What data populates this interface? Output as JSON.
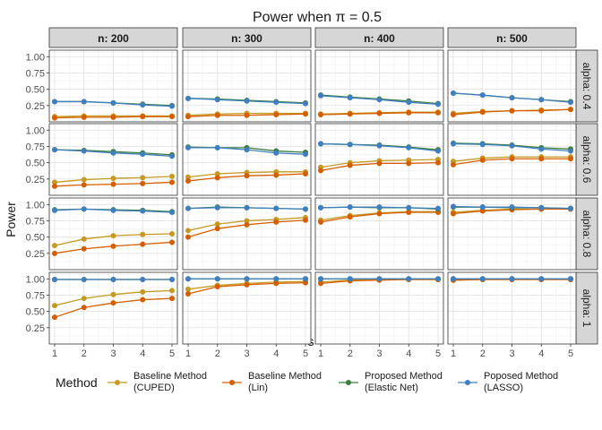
{
  "chart_data": {
    "type": "line",
    "title": "Power when π = 0.5",
    "xlabel": "s",
    "ylabel": "Power",
    "x": [
      1,
      2,
      3,
      4,
      5
    ],
    "xticks": [
      "1",
      "2",
      "3",
      "4",
      "5"
    ],
    "ylim": [
      0.0,
      1.1
    ],
    "yticks": [
      "0.25",
      "0.50",
      "0.75",
      "1.00"
    ],
    "col_facets": [
      "n: 200",
      "n: 300",
      "n: 400",
      "n: 500"
    ],
    "row_facets": [
      "alpha: 0.4",
      "alpha: 0.6",
      "alpha: 0.8",
      "alpha: 1"
    ],
    "legend_title": "Method",
    "legend_position": "bottom",
    "series": [
      {
        "name": "Baseline Method\n(CUPED)",
        "color": "#C49A22",
        "values": [
          [
            [
              0.08,
              0.09,
              0.09,
              0.09,
              0.09
            ],
            [
              0.1,
              0.12,
              0.13,
              0.13,
              0.13
            ],
            [
              0.12,
              0.13,
              0.14,
              0.15,
              0.15
            ],
            [
              0.13,
              0.16,
              0.17,
              0.18,
              0.19
            ]
          ],
          [
            [
              0.2,
              0.24,
              0.26,
              0.27,
              0.29
            ],
            [
              0.28,
              0.33,
              0.35,
              0.36,
              0.36
            ],
            [
              0.43,
              0.5,
              0.53,
              0.54,
              0.55
            ],
            [
              0.52,
              0.57,
              0.59,
              0.59,
              0.59
            ]
          ],
          [
            [
              0.37,
              0.47,
              0.52,
              0.54,
              0.55
            ],
            [
              0.6,
              0.7,
              0.75,
              0.77,
              0.8
            ],
            [
              0.76,
              0.83,
              0.87,
              0.89,
              0.89
            ],
            [
              0.88,
              0.91,
              0.93,
              0.93,
              0.94
            ]
          ],
          [
            [
              0.59,
              0.7,
              0.76,
              0.8,
              0.82
            ],
            [
              0.84,
              0.9,
              0.93,
              0.95,
              0.96
            ],
            [
              0.95,
              0.98,
              0.99,
              0.99,
              0.99
            ],
            [
              0.98,
              0.99,
              0.99,
              0.99,
              0.99
            ]
          ]
        ]
      },
      {
        "name": "Baseline Method\n(Lin)",
        "color": "#D55E00",
        "values": [
          [
            [
              0.06,
              0.07,
              0.07,
              0.08,
              0.08
            ],
            [
              0.08,
              0.1,
              0.1,
              0.11,
              0.12
            ],
            [
              0.11,
              0.12,
              0.13,
              0.14,
              0.14
            ],
            [
              0.11,
              0.15,
              0.17,
              0.17,
              0.19
            ]
          ],
          [
            [
              0.14,
              0.16,
              0.17,
              0.18,
              0.2
            ],
            [
              0.22,
              0.27,
              0.3,
              0.31,
              0.33
            ],
            [
              0.38,
              0.46,
              0.49,
              0.49,
              0.5
            ],
            [
              0.47,
              0.54,
              0.56,
              0.56,
              0.56
            ]
          ],
          [
            [
              0.25,
              0.32,
              0.36,
              0.39,
              0.42
            ],
            [
              0.5,
              0.63,
              0.69,
              0.73,
              0.76
            ],
            [
              0.73,
              0.81,
              0.86,
              0.88,
              0.88
            ],
            [
              0.86,
              0.9,
              0.92,
              0.93,
              0.93
            ]
          ],
          [
            [
              0.41,
              0.56,
              0.63,
              0.68,
              0.7
            ],
            [
              0.77,
              0.88,
              0.91,
              0.93,
              0.94
            ],
            [
              0.93,
              0.97,
              0.98,
              0.99,
              0.99
            ],
            [
              0.98,
              0.99,
              0.99,
              0.99,
              0.99
            ]
          ]
        ]
      },
      {
        "name": "Proposed Method\n(Elastic Net)",
        "color": "#3B7D3B",
        "values": [
          [
            [
              0.31,
              0.31,
              0.29,
              0.27,
              0.25
            ],
            [
              0.36,
              0.35,
              0.33,
              0.31,
              0.29
            ],
            [
              0.41,
              0.38,
              0.35,
              0.32,
              0.28
            ],
            [
              0.44,
              0.41,
              0.37,
              0.34,
              0.31
            ]
          ],
          [
            [
              0.7,
              0.69,
              0.67,
              0.65,
              0.62
            ],
            [
              0.74,
              0.73,
              0.73,
              0.68,
              0.66
            ],
            [
              0.79,
              0.78,
              0.77,
              0.74,
              0.7
            ],
            [
              0.8,
              0.79,
              0.77,
              0.73,
              0.71
            ]
          ],
          [
            [
              0.92,
              0.93,
              0.92,
              0.91,
              0.89
            ],
            [
              0.94,
              0.96,
              0.95,
              0.94,
              0.93
            ],
            [
              0.95,
              0.96,
              0.95,
              0.95,
              0.93
            ],
            [
              0.96,
              0.96,
              0.95,
              0.95,
              0.94
            ]
          ],
          [
            [
              0.99,
              0.99,
              0.99,
              0.99,
              0.99
            ],
            [
              1.0,
              1.0,
              1.0,
              1.0,
              1.0
            ],
            [
              1.0,
              1.0,
              1.0,
              1.0,
              1.0
            ],
            [
              1.0,
              1.0,
              1.0,
              1.0,
              1.0
            ]
          ]
        ]
      },
      {
        "name": "Poposed Method\n(LASSO)",
        "color": "#3F7FBF",
        "values": [
          [
            [
              0.31,
              0.31,
              0.29,
              0.26,
              0.24
            ],
            [
              0.36,
              0.34,
              0.32,
              0.3,
              0.28
            ],
            [
              0.4,
              0.37,
              0.34,
              0.3,
              0.27
            ],
            [
              0.44,
              0.41,
              0.37,
              0.34,
              0.3
            ]
          ],
          [
            [
              0.7,
              0.68,
              0.65,
              0.63,
              0.6
            ],
            [
              0.73,
              0.73,
              0.7,
              0.65,
              0.63
            ],
            [
              0.79,
              0.78,
              0.76,
              0.73,
              0.68
            ],
            [
              0.79,
              0.78,
              0.76,
              0.71,
              0.68
            ]
          ],
          [
            [
              0.91,
              0.93,
              0.91,
              0.9,
              0.88
            ],
            [
              0.94,
              0.95,
              0.95,
              0.94,
              0.93
            ],
            [
              0.95,
              0.96,
              0.96,
              0.95,
              0.94
            ],
            [
              0.97,
              0.96,
              0.96,
              0.95,
              0.94
            ]
          ],
          [
            [
              0.99,
              0.99,
              0.99,
              0.99,
              0.99
            ],
            [
              1.0,
              1.0,
              1.0,
              1.0,
              1.0
            ],
            [
              1.0,
              1.0,
              1.0,
              1.0,
              1.0
            ],
            [
              1.0,
              1.0,
              1.0,
              1.0,
              1.0
            ]
          ]
        ]
      }
    ]
  }
}
